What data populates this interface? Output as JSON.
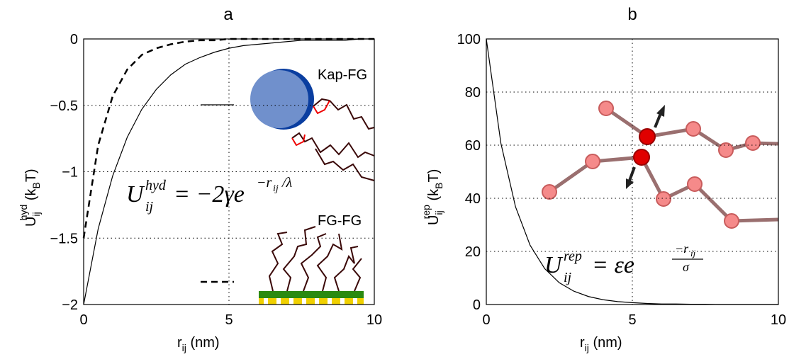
{
  "chart_data": [
    {
      "type": "line",
      "title": "a",
      "xlabel": [
        "r",
        "ij",
        " (nm)"
      ],
      "ylabel": [
        "U",
        "ij",
        "hyd",
        " (k",
        "B",
        "T)"
      ],
      "equation": [
        "U",
        "ij",
        "hyd",
        "= −2γe",
        "−r",
        "ij",
        "/λ"
      ],
      "annotations": [
        "Kap-FG",
        "FG-FG"
      ],
      "x": [
        0,
        0.5,
        1,
        1.5,
        2,
        2.5,
        3,
        3.5,
        4,
        4.5,
        5,
        5.5,
        6,
        6.5,
        7,
        7.5,
        8,
        8.5,
        9,
        9.5,
        10
      ],
      "series": [
        {
          "color": "#000000",
          "linestyle": "solid",
          "values": [
            -2,
            -1.43,
            -1.03,
            -0.74,
            -0.53,
            -0.38,
            -0.27,
            -0.19,
            -0.14,
            -0.1,
            -0.07,
            -0.05,
            -0.04,
            -0.03,
            -0.02,
            -0.01,
            -0.01,
            -0.01,
            -0.01,
            0,
            0
          ]
        },
        {
          "color": "#000000",
          "linestyle": "dashed",
          "values": [
            -1.5,
            -0.8,
            -0.43,
            -0.23,
            -0.12,
            -0.07,
            -0.04,
            -0.02,
            -0.01,
            -0.01,
            0,
            0,
            0,
            0,
            0,
            0,
            0,
            0,
            0,
            0,
            0
          ]
        }
      ],
      "xlim": [
        0,
        10
      ],
      "xticks": [
        0,
        5,
        10
      ],
      "ylim": [
        -2,
        0
      ],
      "yticks": [
        {
          "value": -2,
          "label": "−2"
        },
        {
          "value": -1.5,
          "label": "−1.5"
        },
        {
          "value": -1,
          "label": "−1"
        },
        {
          "value": -0.5,
          "label": "−0.5"
        },
        0
      ],
      "grid": true
    },
    {
      "type": "line",
      "title": "b",
      "xlabel": [
        "r",
        "ij",
        " (nm)"
      ],
      "ylabel": [
        "U",
        "ij",
        "rep",
        " (k",
        "B",
        "T)"
      ],
      "equation": [
        "U",
        "ij",
        "rep",
        "= εe",
        "−r",
        "ij",
        "σ"
      ],
      "x": [
        0,
        0.5,
        1,
        1.5,
        2,
        2.5,
        3,
        3.5,
        4,
        4.5,
        5,
        5.5,
        6,
        6.5,
        7,
        7.5,
        8,
        8.5,
        9,
        9.5,
        10
      ],
      "series": [
        {
          "color": "#000000",
          "linestyle": "solid",
          "values": [
            100,
            60.7,
            36.8,
            22.3,
            13.5,
            8.2,
            5,
            3,
            1.8,
            1.1,
            0.7,
            0.4,
            0.2,
            0.2,
            0.1,
            0.1,
            0,
            0,
            0,
            0,
            0
          ]
        }
      ],
      "xlim": [
        0,
        10
      ],
      "xticks": [
        0,
        5,
        10
      ],
      "ylim": [
        0,
        100
      ],
      "yticks": [
        0,
        20,
        40,
        60,
        80,
        100
      ],
      "grid": true
    }
  ]
}
